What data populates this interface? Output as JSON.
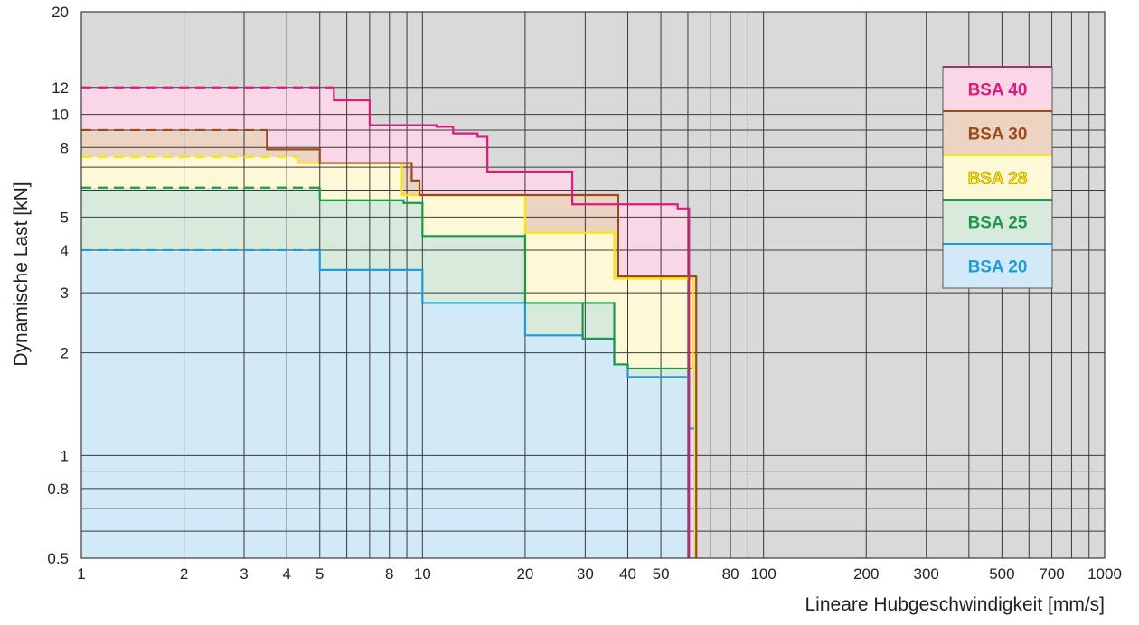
{
  "chart_data": {
    "type": "line",
    "subtype": "step",
    "title": "",
    "xlabel": "Lineare Hubgeschwindigkeit [mm/s]",
    "ylabel": "Dynamische Last [kN]",
    "x_scale": "log",
    "y_scale": "log",
    "xlim": [
      1,
      1000
    ],
    "ylim": [
      0.5,
      20
    ],
    "grid": true,
    "legend_position": "top-right",
    "x_ticks": [
      1,
      2,
      3,
      4,
      5,
      8,
      10,
      20,
      30,
      40,
      50,
      80,
      100,
      200,
      300,
      500,
      700,
      1000
    ],
    "x_tick_labels": [
      "1",
      "2",
      "3",
      "4",
      "5",
      "8",
      "10",
      "20",
      "30",
      "40",
      "50",
      "80",
      "100",
      "200",
      "300",
      "500",
      "700",
      "1000"
    ],
    "y_ticks": [
      0.5,
      0.8,
      1,
      2,
      3,
      4,
      5,
      8,
      10,
      12,
      20
    ],
    "y_tick_labels": [
      "0.5",
      "0.8",
      "1",
      "2",
      "3",
      "4",
      "5",
      "8",
      "10",
      "12",
      "20"
    ],
    "colors": {
      "plot_background": "#d9d9d9",
      "grid": "#3a3a3a"
    },
    "series": [
      {
        "name": "BSA 40",
        "color": "#e0197d",
        "fill": "#f9d7e6",
        "dashed_until_x": 5.5,
        "points": [
          [
            1,
            12
          ],
          [
            5.5,
            12
          ],
          [
            5.5,
            11
          ],
          [
            7,
            11
          ],
          [
            7,
            9.3
          ],
          [
            11,
            9.3
          ],
          [
            11,
            9.2
          ],
          [
            12.3,
            9.2
          ],
          [
            12.3,
            8.8
          ],
          [
            14.5,
            8.8
          ],
          [
            14.5,
            8.6
          ],
          [
            15.5,
            8.6
          ],
          [
            15.5,
            6.8
          ],
          [
            27.5,
            6.8
          ],
          [
            27.5,
            5.45
          ],
          [
            56,
            5.45
          ],
          [
            56,
            5.3
          ],
          [
            60.5,
            5.3
          ],
          [
            60.5,
            0.5
          ]
        ]
      },
      {
        "name": "BSA 30",
        "color": "#9c4a1a",
        "fill": "#ebd4c2",
        "dashed_until_x": 3.5,
        "points": [
          [
            1,
            9
          ],
          [
            3.5,
            9
          ],
          [
            3.5,
            7.9
          ],
          [
            5,
            7.9
          ],
          [
            5,
            7.2
          ],
          [
            9.3,
            7.2
          ],
          [
            9.3,
            6.4
          ],
          [
            9.8,
            6.4
          ],
          [
            9.8,
            5.8
          ],
          [
            37.5,
            5.8
          ],
          [
            37.5,
            3.35
          ],
          [
            63.5,
            3.35
          ],
          [
            63.5,
            0.5
          ]
        ]
      },
      {
        "name": "BSA 28",
        "color": "#ffe600",
        "fill": "#fdf9d6",
        "dashed_until_x": 4.3,
        "points": [
          [
            1,
            7.5
          ],
          [
            4.3,
            7.5
          ],
          [
            4.3,
            7.2
          ],
          [
            8.7,
            7.2
          ],
          [
            8.7,
            5.8
          ],
          [
            20,
            5.8
          ],
          [
            20,
            4.5
          ],
          [
            36.5,
            4.5
          ],
          [
            36.5,
            3.3
          ],
          [
            62,
            3.3
          ],
          [
            62,
            1.8
          ],
          [
            63,
            1.8
          ],
          [
            63,
            0.5
          ]
        ]
      },
      {
        "name": "BSA 25",
        "color": "#1a9a48",
        "fill": "#d7eadb",
        "dashed_until_x": 5,
        "points": [
          [
            1,
            6.1
          ],
          [
            5,
            6.1
          ],
          [
            5,
            5.6
          ],
          [
            8.8,
            5.6
          ],
          [
            8.8,
            5.5
          ],
          [
            10,
            5.5
          ],
          [
            10,
            4.4
          ],
          [
            20,
            4.4
          ],
          [
            20,
            2.8
          ],
          [
            29.5,
            2.8
          ],
          [
            29.5,
            2.2
          ],
          [
            36.5,
            2.2
          ],
          [
            36.5,
            2.8
          ],
          [
            29.5,
            2.8
          ],
          [
            29.5,
            2.2
          ],
          [
            36.5,
            2.2
          ],
          [
            36.5,
            1.85
          ],
          [
            40,
            1.85
          ],
          [
            40,
            1.8
          ],
          [
            63,
            1.8
          ],
          [
            63,
            1.2
          ],
          [
            63.3,
            1.2
          ],
          [
            63.3,
            0.5
          ]
        ]
      },
      {
        "name": "BSA 20",
        "color": "#1f9bd7",
        "fill": "#d2e9f8",
        "dashed_until_x": 5,
        "points": [
          [
            1,
            4
          ],
          [
            5,
            4
          ],
          [
            5,
            3.5
          ],
          [
            10,
            3.5
          ],
          [
            10,
            2.8
          ],
          [
            20,
            2.8
          ],
          [
            20,
            2.25
          ],
          [
            29.5,
            2.25
          ],
          [
            29.5,
            2.2
          ],
          [
            36.5,
            2.2
          ],
          [
            36.5,
            1.85
          ],
          [
            40,
            1.85
          ],
          [
            40,
            1.7
          ],
          [
            60.5,
            1.7
          ],
          [
            60.5,
            1.2
          ],
          [
            63,
            1.2
          ],
          [
            63,
            0.5
          ]
        ]
      }
    ]
  }
}
